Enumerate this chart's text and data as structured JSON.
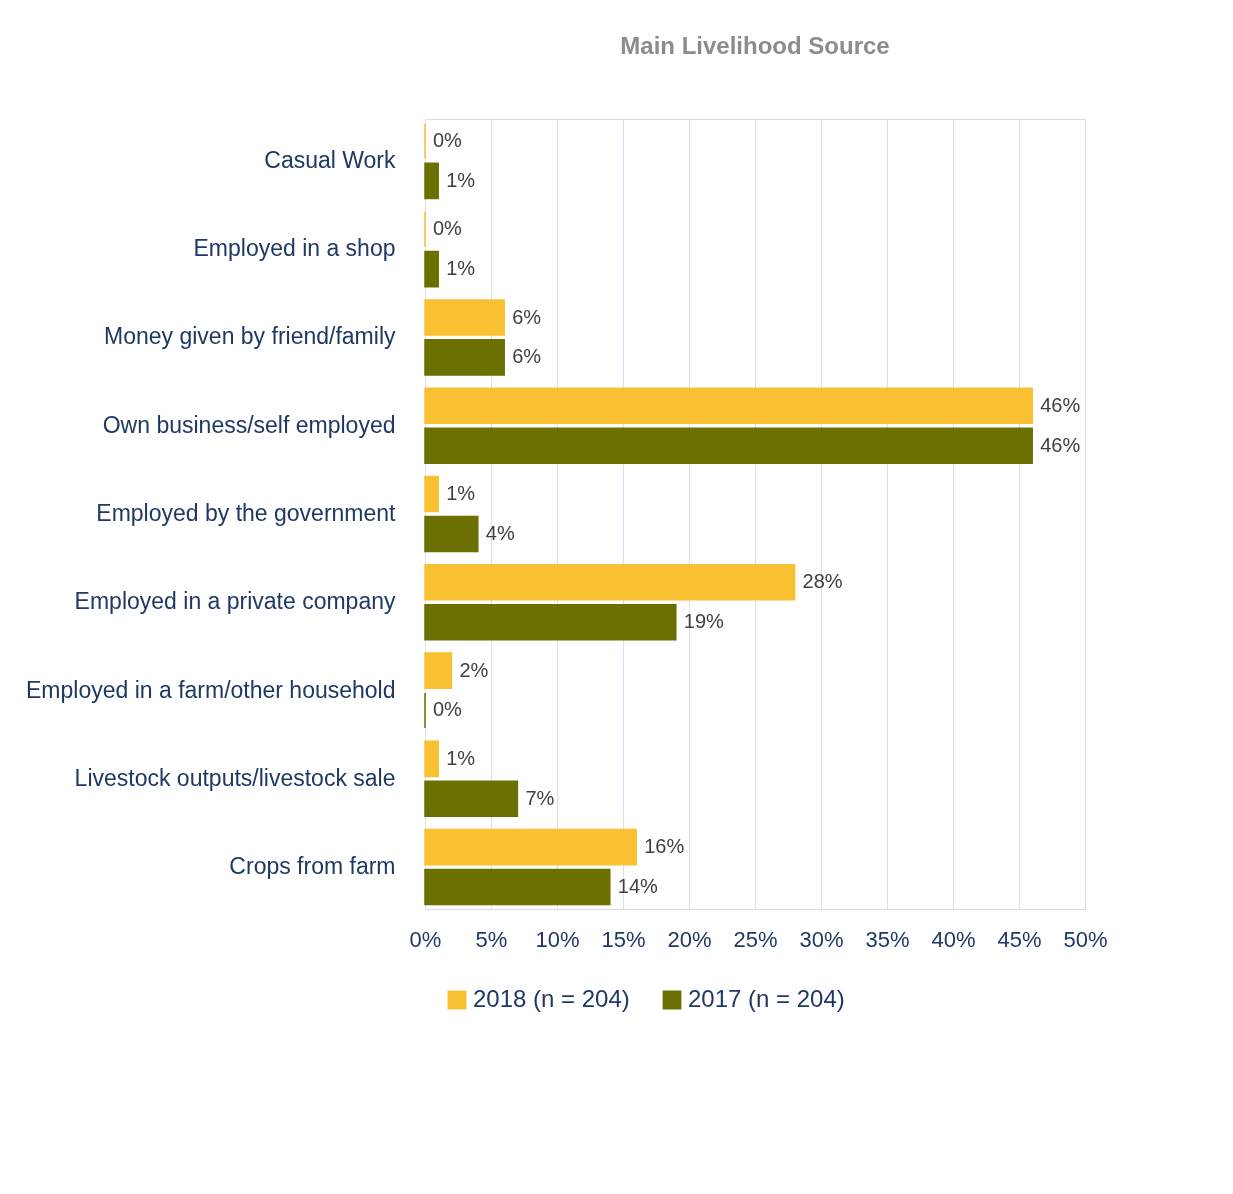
{
  "chart_data": {
    "type": "bar",
    "orientation": "horizontal",
    "title": "Main Livelihood Source",
    "categories": [
      "Casual Work",
      "Employed  in a shop",
      "Money given by friend/family",
      "Own business/self employed",
      "Employed by the government",
      "Employed in a private company",
      "Employed in a farm/other household",
      "Livestock outputs/livestock sale",
      "Crops from farm"
    ],
    "series": [
      {
        "name": "2018 (n = 204)",
        "color": "#f9c132",
        "values": [
          0,
          0,
          6,
          46,
          1,
          28,
          2,
          1,
          16
        ],
        "value_labels": [
          "0%",
          "0%",
          "6%",
          "46%",
          "1%",
          "28%",
          "2%",
          "1%",
          "16%"
        ]
      },
      {
        "name": "2017 (n = 204)",
        "color": "#6b7000",
        "values": [
          1,
          1,
          6,
          46,
          4,
          19,
          0,
          7,
          14
        ],
        "value_labels": [
          "1%",
          "1%",
          "6%",
          "46%",
          "4%",
          "19%",
          "0%",
          "7%",
          "14%"
        ]
      }
    ],
    "xlim": [
      0,
      50
    ],
    "xticks": [
      {
        "value": 0,
        "label": "0%"
      },
      {
        "value": 5,
        "label": "5%"
      },
      {
        "value": 10,
        "label": "10%"
      },
      {
        "value": 15,
        "label": "15%"
      },
      {
        "value": 20,
        "label": "20%"
      },
      {
        "value": 25,
        "label": "25%"
      },
      {
        "value": 30,
        "label": "30%"
      },
      {
        "value": 35,
        "label": "35%"
      },
      {
        "value": 40,
        "label": "40%"
      },
      {
        "value": 45,
        "label": "45%"
      },
      {
        "value": 50,
        "label": "50%"
      }
    ],
    "grid": "x",
    "legend": "bottom"
  }
}
